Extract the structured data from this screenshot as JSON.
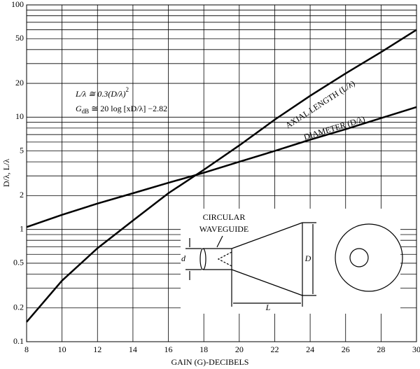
{
  "chart_data": {
    "type": "line",
    "log_y": true,
    "grid": true,
    "x_label": "GAIN (G)-DECIBELS",
    "y_label": "D/λ, L/λ",
    "x": [
      8,
      10,
      12,
      14,
      16,
      18,
      20,
      22,
      24,
      26,
      28,
      30
    ],
    "series": [
      {
        "name": "AXIAL LENGTH  (L/λ)",
        "color": "#000000",
        "values": [
          0.15,
          0.35,
          0.68,
          1.2,
          2.1,
          3.4,
          5.6,
          9.5,
          15.5,
          24.5,
          38,
          60
        ]
      },
      {
        "name": "DIAMETER (D/λ)",
        "color": "#000000",
        "values": [
          1.05,
          1.35,
          1.7,
          2.1,
          2.6,
          3.2,
          4.0,
          5.0,
          6.3,
          7.8,
          9.8,
          12.3
        ]
      }
    ],
    "xlim": [
      8,
      30
    ],
    "xticks": [
      8,
      10,
      12,
      14,
      16,
      18,
      20,
      22,
      24,
      26,
      28,
      30
    ],
    "ylim": [
      0.1,
      100
    ],
    "yticks": [
      0.1,
      0.2,
      0.5,
      1,
      2,
      5,
      10,
      20,
      50,
      100
    ],
    "y_minor_grid": [
      0.3,
      0.4,
      0.6,
      0.7,
      0.8,
      0.9,
      3,
      4,
      6,
      7,
      8,
      9,
      30,
      40,
      60,
      70,
      80,
      90
    ],
    "formula_1": [
      "L/λ ≅ 0.3(D/λ)",
      "2"
    ],
    "formula_2": [
      "G",
      "dB",
      " ≅ 20 log [xD/λ] −2.82"
    ],
    "inset": {
      "title_1": "CIRCULAR",
      "title_2": "WAVEGUIDE",
      "d": "d",
      "D": "D",
      "L": "L"
    }
  }
}
